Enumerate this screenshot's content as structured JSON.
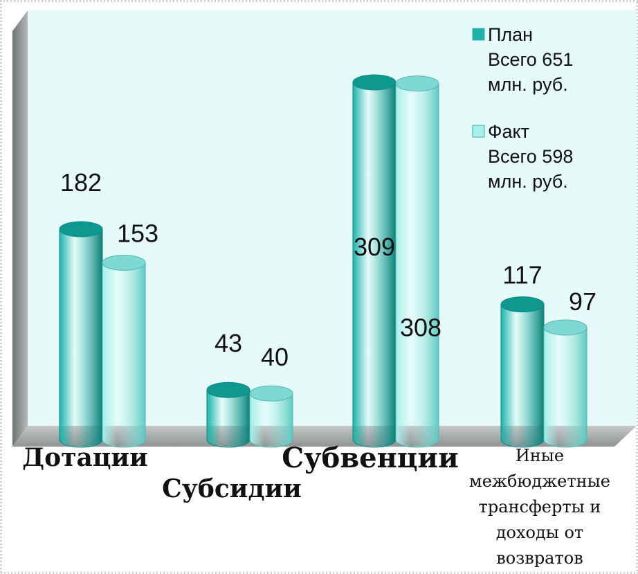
{
  "chart_data": {
    "type": "bar3d",
    "categories": [
      "Дотации",
      "Субсидии",
      "Субвенции",
      "Иные\nмежбюджетные\nтрансферты и\nдоходы от\nвозвратов"
    ],
    "series": [
      {
        "name": "План\nВсего 651\nмлн. руб.",
        "color": "#1cb3ab",
        "values": [
          182,
          43,
          309,
          117
        ]
      },
      {
        "name": "Факт\nВсего 598\nмлн. руб.",
        "color": "#a6efea",
        "values": [
          153,
          40,
          308,
          97
        ]
      }
    ]
  }
}
